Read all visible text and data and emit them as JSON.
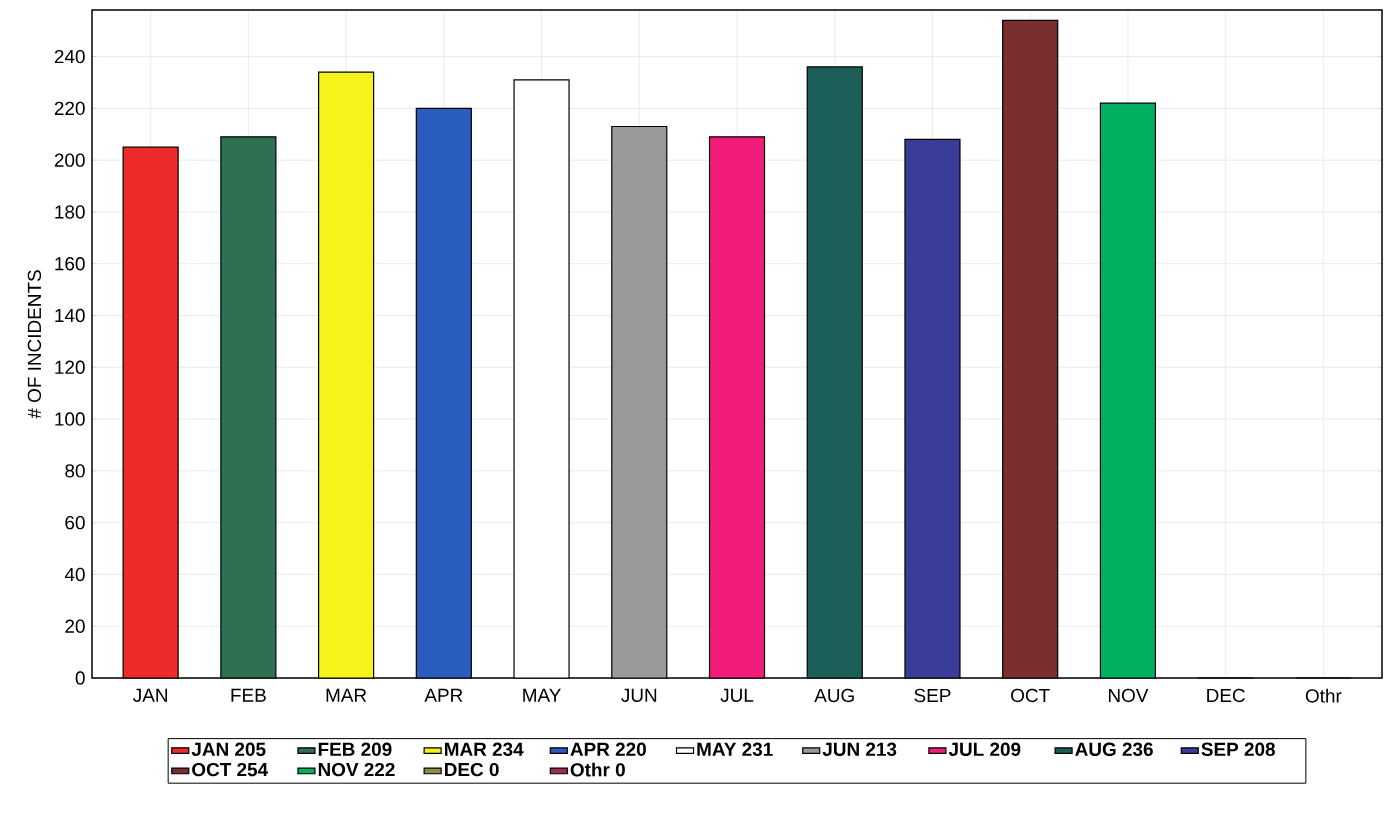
{
  "chart_data": {
    "type": "bar",
    "ylabel": "# OF INCIDENTS",
    "categories": [
      "JAN",
      "FEB",
      "MAR",
      "APR",
      "MAY",
      "JUN",
      "JUL",
      "AUG",
      "SEP",
      "OCT",
      "NOV",
      "DEC",
      "Othr"
    ],
    "series": [
      {
        "name": "JAN 205",
        "color": "#ee2b2b",
        "values": [
          205,
          null,
          null,
          null,
          null,
          null,
          null,
          null,
          null,
          null,
          null,
          null,
          null
        ]
      },
      {
        "name": "FEB 209",
        "color": "#2e7050",
        "values": [
          null,
          209,
          null,
          null,
          null,
          null,
          null,
          null,
          null,
          null,
          null,
          null,
          null
        ]
      },
      {
        "name": "MAR 234",
        "color": "#f7f219",
        "values": [
          null,
          null,
          234,
          null,
          null,
          null,
          null,
          null,
          null,
          null,
          null,
          null,
          null
        ]
      },
      {
        "name": "APR 220",
        "color": "#2a5cc0",
        "values": [
          null,
          null,
          null,
          220,
          null,
          null,
          null,
          null,
          null,
          null,
          null,
          null,
          null
        ]
      },
      {
        "name": "MAY 231",
        "color": "#ffffff",
        "values": [
          null,
          null,
          null,
          null,
          231,
          null,
          null,
          null,
          null,
          null,
          null,
          null,
          null
        ]
      },
      {
        "name": "JUN 213",
        "color": "#9a9a9a",
        "values": [
          null,
          null,
          null,
          null,
          null,
          213,
          null,
          null,
          null,
          null,
          null,
          null,
          null
        ]
      },
      {
        "name": "JUL 209",
        "color": "#f21d78",
        "values": [
          null,
          null,
          null,
          null,
          null,
          null,
          209,
          null,
          null,
          null,
          null,
          null,
          null
        ]
      },
      {
        "name": "AUG 236",
        "color": "#1c5e58",
        "values": [
          null,
          null,
          null,
          null,
          null,
          null,
          null,
          236,
          null,
          null,
          null,
          null,
          null
        ]
      },
      {
        "name": "SEP 208",
        "color": "#3a3d98",
        "values": [
          null,
          null,
          null,
          null,
          null,
          null,
          null,
          null,
          208,
          null,
          null,
          null,
          null
        ]
      },
      {
        "name": "OCT 254",
        "color": "#7a2e2e",
        "values": [
          null,
          null,
          null,
          null,
          null,
          null,
          null,
          null,
          null,
          254,
          null,
          null,
          null
        ]
      },
      {
        "name": "NOV 222",
        "color": "#00b060",
        "values": [
          null,
          null,
          null,
          null,
          null,
          null,
          null,
          null,
          null,
          null,
          222,
          null,
          null
        ]
      },
      {
        "name": "DEC 0",
        "color": "#8f8a45",
        "values": [
          null,
          null,
          null,
          null,
          null,
          null,
          null,
          null,
          null,
          null,
          null,
          0,
          null
        ]
      },
      {
        "name": "Othr 0",
        "color": "#9a3050",
        "values": [
          null,
          null,
          null,
          null,
          null,
          null,
          null,
          null,
          null,
          null,
          null,
          null,
          0
        ]
      }
    ],
    "ylim": [
      0,
      258
    ],
    "yticks": [
      0,
      20,
      40,
      60,
      80,
      100,
      120,
      140,
      160,
      180,
      200,
      220,
      240
    ],
    "grid": true,
    "legend": "bottom"
  }
}
